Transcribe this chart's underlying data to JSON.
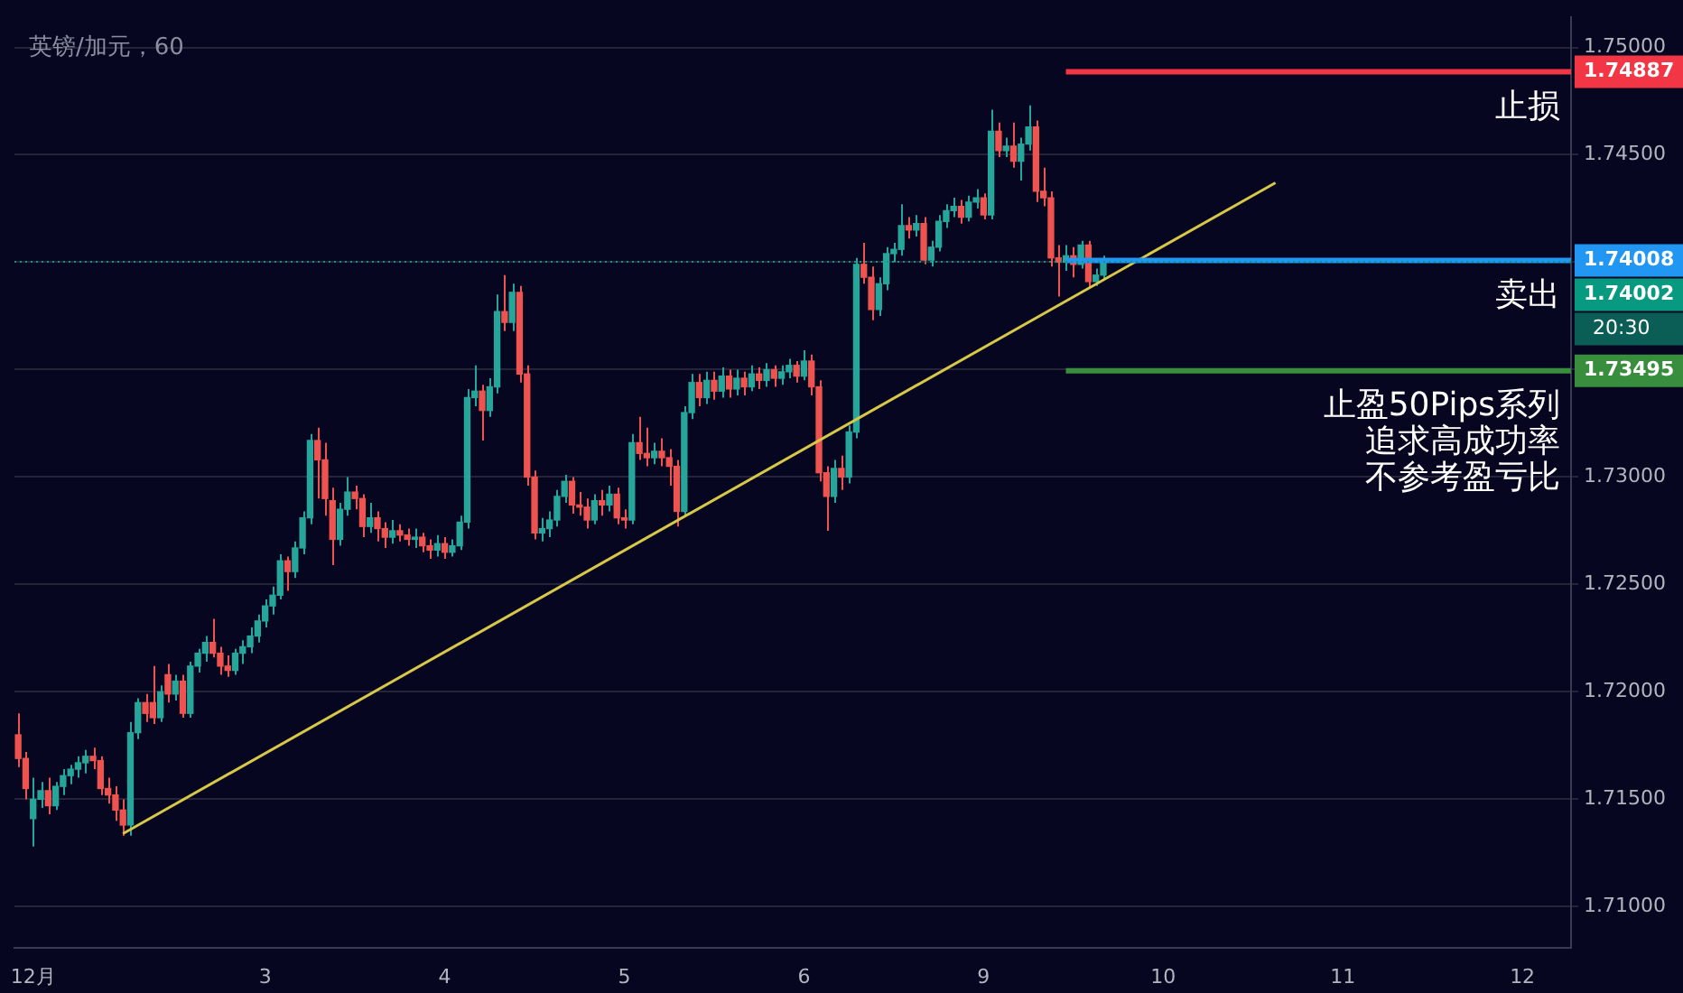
{
  "chart_data": {
    "type": "candlestick",
    "title": "英镑/加元，60",
    "categories": [
      null,
      null,
      "12月",
      null,
      null,
      null,
      null,
      null,
      null,
      null,
      null,
      null,
      null,
      null,
      null,
      null,
      null,
      null,
      null,
      null,
      null,
      null,
      null,
      null,
      null,
      null,
      null,
      null,
      null,
      null,
      null,
      null,
      null,
      "3",
      null,
      null,
      null,
      null,
      null,
      null,
      null,
      null,
      null,
      null,
      null,
      null,
      null,
      null,
      null,
      null,
      null,
      null,
      null,
      null,
      null,
      null,
      null,
      "4",
      null,
      null,
      null,
      null,
      null,
      null,
      null,
      null,
      null,
      null,
      null,
      null,
      null,
      null,
      null,
      null,
      null,
      null,
      null,
      null,
      null,
      null,
      null,
      "5",
      null,
      null,
      null,
      null,
      null,
      null,
      null,
      null,
      null,
      null,
      null,
      null,
      null,
      null,
      null,
      null,
      null,
      null,
      null,
      null,
      null,
      null,
      null,
      "6",
      null,
      null,
      null,
      null,
      null,
      null,
      null,
      null,
      null,
      null,
      null,
      null,
      null,
      null,
      null,
      null,
      null,
      null,
      null,
      null,
      null,
      null,
      null,
      "9",
      null,
      null,
      null,
      null,
      null,
      null,
      null,
      null,
      null,
      null,
      null,
      null,
      null,
      null,
      null,
      null,
      null,
      null,
      null,
      null,
      null,
      null,
      null,
      "10",
      null,
      null,
      null,
      null,
      null,
      null,
      null,
      null,
      null,
      null,
      null,
      null,
      null,
      null,
      null,
      null,
      null,
      null,
      null,
      null,
      null,
      null,
      null,
      "11",
      null,
      null,
      null,
      null,
      null,
      null,
      null,
      null,
      null,
      null,
      null,
      null,
      null,
      null,
      null,
      null,
      null,
      null,
      null,
      null,
      null,
      null,
      null,
      "12",
      null,
      null,
      null,
      null,
      null,
      null
    ],
    "ohlc": [
      [
        1.718,
        1.719,
        1.7165,
        1.7169
      ],
      [
        1.7169,
        1.7172,
        1.715,
        1.7155
      ],
      [
        1.7141,
        1.716,
        1.7128,
        1.715
      ],
      [
        1.715,
        1.7158,
        1.7146,
        1.7154
      ],
      [
        1.7154,
        1.716,
        1.7143,
        1.7147
      ],
      [
        1.7147,
        1.7158,
        1.7145,
        1.7156
      ],
      [
        1.7156,
        1.7164,
        1.7152,
        1.7161
      ],
      [
        1.7161,
        1.7166,
        1.7157,
        1.7164
      ],
      [
        1.7164,
        1.717,
        1.716,
        1.7167
      ],
      [
        1.7167,
        1.7173,
        1.7162,
        1.717
      ],
      [
        1.717,
        1.7174,
        1.7164,
        1.7168
      ],
      [
        1.7168,
        1.717,
        1.7152,
        1.7155
      ],
      [
        1.7155,
        1.716,
        1.7148,
        1.7152
      ],
      [
        1.7152,
        1.7156,
        1.714,
        1.7145
      ],
      [
        1.7145,
        1.715,
        1.7133,
        1.7138
      ],
      [
        1.7138,
        1.7186,
        1.7133,
        1.7181
      ],
      [
        1.7181,
        1.7197,
        1.7178,
        1.7195
      ],
      [
        1.7195,
        1.7199,
        1.7186,
        1.719
      ],
      [
        1.7195,
        1.7212,
        1.7185,
        1.7188
      ],
      [
        1.7188,
        1.7203,
        1.7186,
        1.72
      ],
      [
        1.7208,
        1.7213,
        1.7195,
        1.7199
      ],
      [
        1.7199,
        1.7208,
        1.7196,
        1.7205
      ],
      [
        1.7205,
        1.7208,
        1.7188,
        1.719
      ],
      [
        1.719,
        1.7214,
        1.7188,
        1.7212
      ],
      [
        1.7212,
        1.722,
        1.7209,
        1.7218
      ],
      [
        1.7218,
        1.7226,
        1.7214,
        1.7223
      ],
      [
        1.7223,
        1.7234,
        1.7216,
        1.7218
      ],
      [
        1.7218,
        1.7221,
        1.7208,
        1.7212
      ],
      [
        1.7212,
        1.7217,
        1.7207,
        1.721
      ],
      [
        1.721,
        1.722,
        1.7208,
        1.7218
      ],
      [
        1.7218,
        1.7224,
        1.7213,
        1.7221
      ],
      [
        1.7221,
        1.723,
        1.7218,
        1.7226
      ],
      [
        1.7226,
        1.7236,
        1.7223,
        1.7233
      ],
      [
        1.7233,
        1.7243,
        1.723,
        1.724
      ],
      [
        1.724,
        1.7249,
        1.7236,
        1.7245
      ],
      [
        1.7245,
        1.7264,
        1.7243,
        1.7261
      ],
      [
        1.7261,
        1.7263,
        1.7247,
        1.7256
      ],
      [
        1.7256,
        1.727,
        1.7253,
        1.7267
      ],
      [
        1.7267,
        1.7284,
        1.7264,
        1.7281
      ],
      [
        1.7281,
        1.732,
        1.7278,
        1.7317
      ],
      [
        1.7317,
        1.7323,
        1.729,
        1.7308
      ],
      [
        1.7308,
        1.7316,
        1.7282,
        1.729
      ],
      [
        1.7289,
        1.7295,
        1.7259,
        1.7271
      ],
      [
        1.7271,
        1.7288,
        1.7268,
        1.7285
      ],
      [
        1.7285,
        1.73,
        1.7282,
        1.7293
      ],
      [
        1.7293,
        1.7296,
        1.7285,
        1.729
      ],
      [
        1.729,
        1.7292,
        1.7272,
        1.7277
      ],
      [
        1.7277,
        1.7288,
        1.7274,
        1.7281
      ],
      [
        1.7281,
        1.7284,
        1.727,
        1.7276
      ],
      [
        1.7276,
        1.7279,
        1.7267,
        1.7272
      ],
      [
        1.7272,
        1.728,
        1.7269,
        1.7275
      ],
      [
        1.7275,
        1.7278,
        1.727,
        1.7273
      ],
      [
        1.7273,
        1.7276,
        1.7268,
        1.7271
      ],
      [
        1.7271,
        1.7276,
        1.7267,
        1.7272
      ],
      [
        1.7272,
        1.7274,
        1.7265,
        1.7268
      ],
      [
        1.7268,
        1.7271,
        1.7262,
        1.7266
      ],
      [
        1.7266,
        1.7273,
        1.7263,
        1.7269
      ],
      [
        1.7269,
        1.7272,
        1.7262,
        1.7265
      ],
      [
        1.7265,
        1.7271,
        1.7263,
        1.7268
      ],
      [
        1.7268,
        1.7282,
        1.7266,
        1.7279
      ],
      [
        1.7279,
        1.7341,
        1.7276,
        1.7337
      ],
      [
        1.7337,
        1.7352,
        1.7333,
        1.734
      ],
      [
        1.734,
        1.7343,
        1.7317,
        1.7331
      ],
      [
        1.7331,
        1.7346,
        1.7328,
        1.7342
      ],
      [
        1.7342,
        1.7385,
        1.7339,
        1.7377
      ],
      [
        1.7377,
        1.7394,
        1.7368,
        1.7372
      ],
      [
        1.7372,
        1.739,
        1.7368,
        1.7386
      ],
      [
        1.7386,
        1.7389,
        1.7344,
        1.7348
      ],
      [
        1.7348,
        1.7352,
        1.7296,
        1.73
      ],
      [
        1.73,
        1.7303,
        1.7271,
        1.7274
      ],
      [
        1.7274,
        1.7281,
        1.727,
        1.7276
      ],
      [
        1.7276,
        1.7284,
        1.7272,
        1.728
      ],
      [
        1.728,
        1.7294,
        1.7277,
        1.7291
      ],
      [
        1.7291,
        1.7301,
        1.7288,
        1.7298
      ],
      [
        1.7298,
        1.73,
        1.7283,
        1.7287
      ],
      [
        1.7287,
        1.7293,
        1.7282,
        1.7286
      ],
      [
        1.7286,
        1.729,
        1.7276,
        1.728
      ],
      [
        1.728,
        1.7292,
        1.7278,
        1.7289
      ],
      [
        1.7289,
        1.7294,
        1.7282,
        1.7287
      ],
      [
        1.7287,
        1.7296,
        1.7284,
        1.7292
      ],
      [
        1.7292,
        1.7295,
        1.7278,
        1.7281
      ],
      [
        1.7281,
        1.7285,
        1.7276,
        1.728
      ],
      [
        1.728,
        1.732,
        1.7278,
        1.7316
      ],
      [
        1.7316,
        1.7328,
        1.7308,
        1.7311
      ],
      [
        1.7311,
        1.7323,
        1.7305,
        1.7309
      ],
      [
        1.7309,
        1.7316,
        1.7306,
        1.7312
      ],
      [
        1.7312,
        1.7318,
        1.7305,
        1.7309
      ],
      [
        1.7309,
        1.7313,
        1.7296,
        1.7305
      ],
      [
        1.7305,
        1.7308,
        1.7277,
        1.7284
      ],
      [
        1.7284,
        1.7333,
        1.7282,
        1.733
      ],
      [
        1.733,
        1.7348,
        1.7327,
        1.7344
      ],
      [
        1.7344,
        1.7348,
        1.7333,
        1.7337
      ],
      [
        1.7337,
        1.7349,
        1.7334,
        1.7345
      ],
      [
        1.7345,
        1.7349,
        1.7336,
        1.734
      ],
      [
        1.734,
        1.7351,
        1.7337,
        1.7347
      ],
      [
        1.7347,
        1.735,
        1.7337,
        1.7341
      ],
      [
        1.7341,
        1.735,
        1.7338,
        1.7346
      ],
      [
        1.7346,
        1.7349,
        1.7338,
        1.7342
      ],
      [
        1.7342,
        1.7352,
        1.734,
        1.7348
      ],
      [
        1.7348,
        1.7351,
        1.7341,
        1.7345
      ],
      [
        1.7345,
        1.7353,
        1.7342,
        1.735
      ],
      [
        1.735,
        1.7352,
        1.7342,
        1.7346
      ],
      [
        1.7346,
        1.7352,
        1.7343,
        1.7349
      ],
      [
        1.7349,
        1.7355,
        1.7346,
        1.7352
      ],
      [
        1.7352,
        1.7354,
        1.7344,
        1.7347
      ],
      [
        1.7347,
        1.7359,
        1.7345,
        1.7354
      ],
      [
        1.7354,
        1.7357,
        1.7338,
        1.7342
      ],
      [
        1.7342,
        1.7345,
        1.7298,
        1.7302
      ],
      [
        1.7302,
        1.7305,
        1.7275,
        1.7291
      ],
      [
        1.7291,
        1.7308,
        1.7288,
        1.7304
      ],
      [
        1.7304,
        1.731,
        1.7294,
        1.73
      ],
      [
        1.73,
        1.7324,
        1.7297,
        1.7321
      ],
      [
        1.7321,
        1.7402,
        1.7318,
        1.7399
      ],
      [
        1.7399,
        1.7409,
        1.739,
        1.7393
      ],
      [
        1.7393,
        1.7398,
        1.7373,
        1.7378
      ],
      [
        1.7378,
        1.7393,
        1.7375,
        1.739
      ],
      [
        1.739,
        1.7407,
        1.7387,
        1.7404
      ],
      [
        1.7404,
        1.7409,
        1.74,
        1.7406
      ],
      [
        1.7406,
        1.7427,
        1.7403,
        1.7417
      ],
      [
        1.7417,
        1.7421,
        1.7411,
        1.7415
      ],
      [
        1.7415,
        1.7422,
        1.7412,
        1.7418
      ],
      [
        1.7418,
        1.7421,
        1.7399,
        1.7401
      ],
      [
        1.7401,
        1.741,
        1.7398,
        1.7407
      ],
      [
        1.7407,
        1.7422,
        1.7405,
        1.7419
      ],
      [
        1.7419,
        1.7427,
        1.7416,
        1.7424
      ],
      [
        1.7424,
        1.743,
        1.7421,
        1.7426
      ],
      [
        1.7426,
        1.7429,
        1.7418,
        1.7421
      ],
      [
        1.7421,
        1.7431,
        1.7419,
        1.7428
      ],
      [
        1.7428,
        1.7434,
        1.7425,
        1.743
      ],
      [
        1.743,
        1.7432,
        1.742,
        1.7422
      ],
      [
        1.7422,
        1.7471,
        1.742,
        1.7461
      ],
      [
        1.7461,
        1.7465,
        1.7449,
        1.7452
      ],
      [
        1.7452,
        1.7458,
        1.7449,
        1.7454
      ],
      [
        1.7454,
        1.7465,
        1.7444,
        1.7447
      ],
      [
        1.7447,
        1.7458,
        1.7438,
        1.7455
      ],
      [
        1.7455,
        1.7473,
        1.7452,
        1.7463
      ],
      [
        1.7463,
        1.7466,
        1.7428,
        1.7433
      ],
      [
        1.7433,
        1.7444,
        1.7426,
        1.743
      ],
      [
        1.743,
        1.7433,
        1.7398,
        1.7402
      ],
      [
        1.7402,
        1.7408,
        1.7384,
        1.74
      ],
      [
        1.74,
        1.7408,
        1.7396,
        1.7403
      ],
      [
        1.7403,
        1.7407,
        1.7393,
        1.7399
      ],
      [
        1.7399,
        1.741,
        1.7397,
        1.7408
      ],
      [
        1.7408,
        1.741,
        1.7388,
        1.7391
      ],
      [
        1.7391,
        1.7397,
        1.7389,
        1.7394
      ],
      [
        1.7394,
        1.7403,
        1.7392,
        1.74
      ],
      null,
      null,
      null,
      null,
      null,
      null,
      null,
      null,
      null,
      null,
      null,
      null,
      null,
      null,
      null,
      null,
      null,
      null,
      null,
      null,
      null,
      null,
      null,
      null,
      null,
      null,
      null,
      null,
      null,
      null,
      null,
      null,
      null,
      null,
      null,
      null,
      null,
      null,
      null,
      null,
      null,
      null,
      null,
      null,
      null,
      null,
      null,
      null,
      null,
      null,
      null,
      null,
      null,
      null,
      null,
      null,
      null,
      null,
      null,
      null,
      null,
      null
    ],
    "series": [
      {
        "type": "line",
        "color": "#d8c84a",
        "values": [
          null,
          null,
          null,
          null,
          null,
          null,
          null,
          null,
          null,
          null,
          null,
          null,
          null,
          null,
          1.7134,
          null,
          null,
          null,
          null,
          null,
          null,
          null,
          null,
          null,
          null,
          null,
          null,
          null,
          null,
          null,
          null,
          null,
          null,
          null,
          null,
          null,
          null,
          null,
          null,
          null,
          null,
          null,
          null,
          null,
          null,
          null,
          null,
          null,
          null,
          null,
          null,
          null,
          null,
          null,
          null,
          null,
          null,
          null,
          null,
          null,
          null,
          null,
          null,
          null,
          null,
          null,
          null,
          null,
          null,
          null,
          null,
          null,
          null,
          null,
          null,
          null,
          null,
          null,
          null,
          null,
          null,
          null,
          null,
          null,
          null,
          null,
          null,
          null,
          null,
          null,
          null,
          null,
          null,
          null,
          null,
          null,
          null,
          null,
          null,
          null,
          null,
          null,
          null,
          null,
          null,
          null,
          null,
          null,
          null,
          null,
          null,
          null,
          null,
          null,
          null,
          null,
          null,
          null,
          null,
          null,
          null,
          null,
          null,
          null,
          null,
          null,
          null,
          null,
          null,
          null,
          null,
          null,
          null,
          null,
          null,
          null,
          null,
          null,
          null,
          null,
          null,
          null,
          null,
          null,
          null,
          null,
          null,
          null,
          null,
          null,
          null,
          null,
          null,
          null,
          null,
          null,
          null,
          null,
          null,
          null,
          null,
          null,
          null,
          null,
          null,
          null,
          null,
          null,
          1.7437,
          null,
          null,
          null,
          null,
          null,
          null,
          null,
          null,
          null,
          null,
          null,
          null,
          null,
          null,
          null,
          null,
          null,
          null,
          null,
          null,
          null,
          null,
          null,
          null,
          null,
          null,
          null,
          null,
          null,
          null,
          null,
          null,
          null,
          null,
          null,
          null,
          null,
          null,
          null
        ]
      }
    ],
    "ylim": [
      1.7081,
      1.7514
    ],
    "yticks": [
      {
        "value": 1.71,
        "label": "1.71000"
      },
      {
        "value": 1.715,
        "label": "1.71500"
      },
      {
        "value": 1.72,
        "label": "1.72000"
      },
      {
        "value": 1.725,
        "label": "1.72500"
      },
      {
        "value": 1.73,
        "label": "1.73000"
      },
      {
        "value": 1.735,
        "label": null
      },
      {
        "value": 1.74,
        "label": null
      },
      {
        "value": 1.745,
        "label": "1.74500"
      },
      {
        "value": 1.75,
        "label": "1.75000"
      }
    ],
    "ref_lines": [
      {
        "axis": "y",
        "value": 1.74887,
        "label": "1.74887",
        "color": "#f23645"
      },
      {
        "axis": "y",
        "value": 1.74008,
        "label": "1.74008",
        "color": "#2196f3"
      },
      {
        "axis": "y",
        "value": 1.74002,
        "label": "1.74002",
        "color": "#089981",
        "line_style": "dotted"
      },
      {
        "axis": "y",
        "value": 1.73495,
        "label": "1.73495",
        "color": "#388e3c"
      }
    ],
    "annotations": [
      "止损",
      "卖出",
      "20:30",
      "止盈50Pips系列",
      "追求高成功率",
      "不参考盈亏比"
    ],
    "grid": "y",
    "legend": false
  }
}
